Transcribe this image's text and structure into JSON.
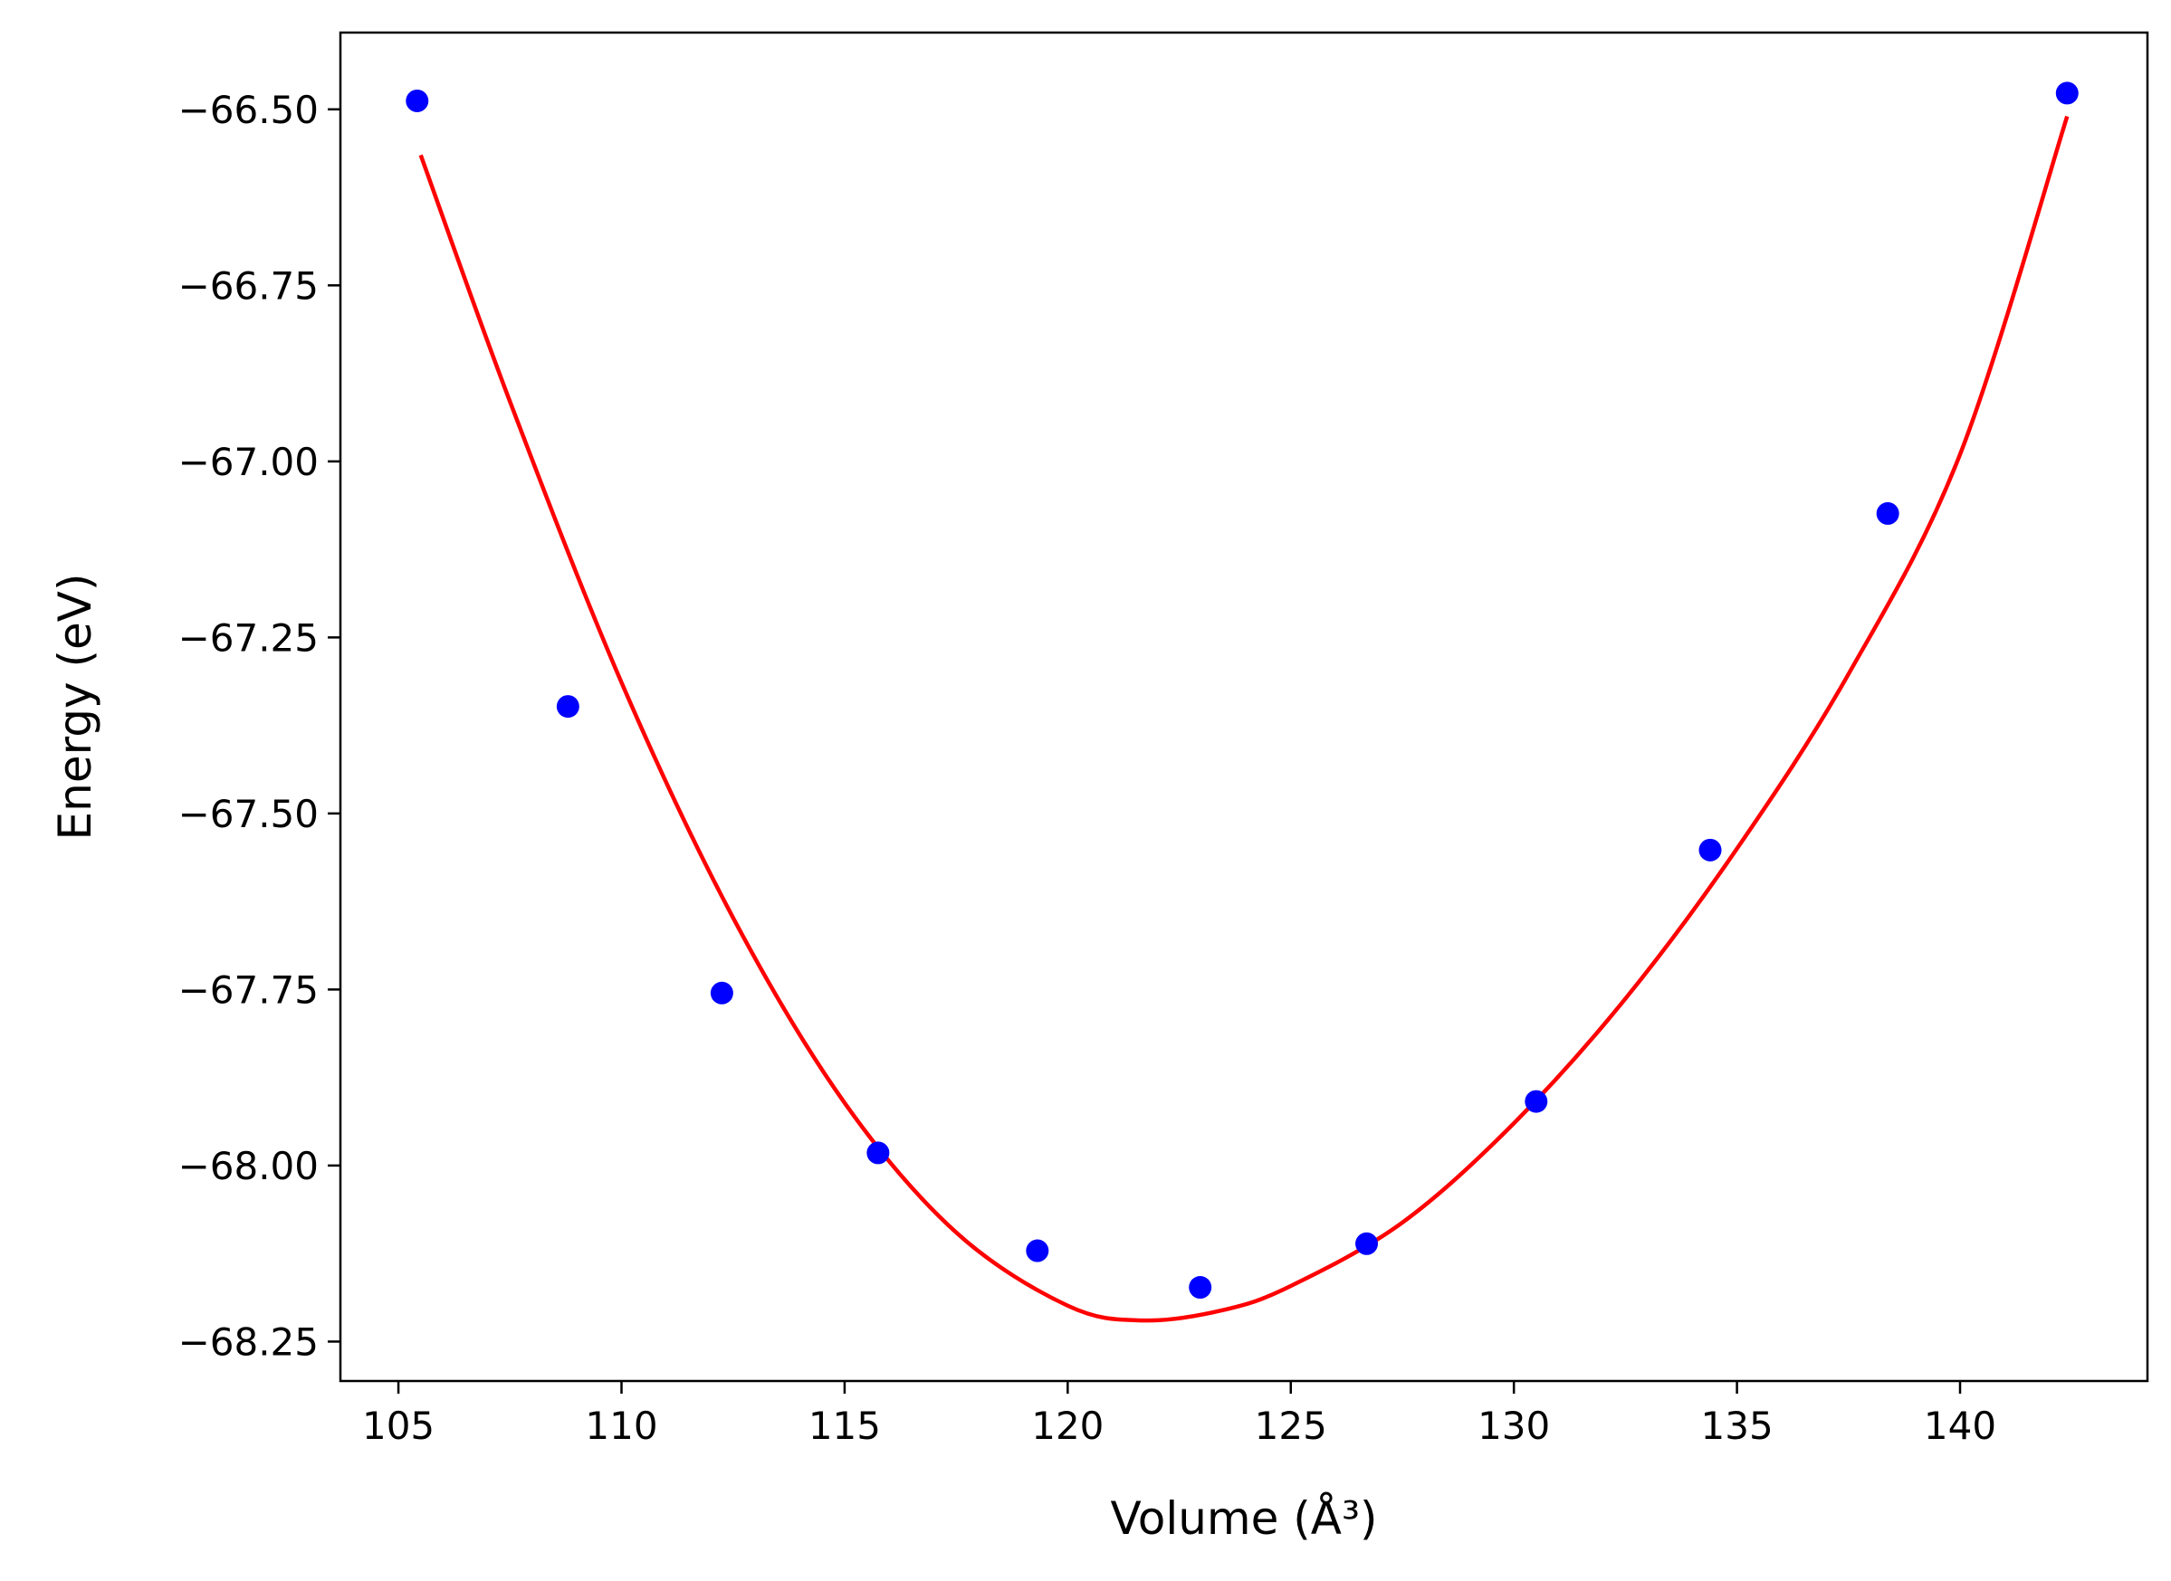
{
  "chart_data": {
    "type": "scatter",
    "xlabel": "Volume (Å³)",
    "ylabel": "Energy (eV)",
    "xlim": [
      103.7,
      144.2
    ],
    "ylim": [
      -68.306,
      -66.391
    ],
    "x_ticks": [
      105,
      110,
      115,
      120,
      125,
      130,
      135,
      140
    ],
    "y_ticks": [
      -66.5,
      -66.75,
      -67.0,
      -67.25,
      -67.5,
      -67.75,
      -68.0,
      -68.25
    ],
    "x_tick_labels": [
      "105",
      "110",
      "115",
      "120",
      "125",
      "130",
      "135",
      "140"
    ],
    "y_tick_labels": [
      "−66.50",
      "−66.75",
      "−67.00",
      "−67.25",
      "−67.50",
      "−67.75",
      "−68.00",
      "−68.25"
    ],
    "grid": false,
    "series": [
      {
        "type": "scatter",
        "color": "#0000ff",
        "x": [
          105.42,
          108.8,
          112.25,
          115.75,
          119.32,
          122.97,
          126.7,
          130.5,
          134.4,
          138.38,
          142.4
        ],
        "y": [
          -66.488,
          -67.348,
          -67.755,
          -67.982,
          -68.121,
          -68.173,
          -68.111,
          -67.909,
          -67.552,
          -67.074,
          -66.477
        ]
      },
      {
        "type": "line",
        "color": "#ff0000",
        "x": [
          105.5,
          107.5,
          110.0,
          112.5,
          115.0,
          117.5,
          120.0,
          121.7,
          123.5,
          125.0,
          127.5,
          130.0,
          132.5,
          135.0,
          137.5,
          140.0,
          142.4
        ],
        "y": [
          -66.565,
          -66.915,
          -67.314,
          -67.648,
          -67.911,
          -68.095,
          -68.199,
          -68.22,
          -68.205,
          -68.171,
          -68.081,
          -67.94,
          -67.763,
          -67.55,
          -67.302,
          -66.99,
          -66.51
        ]
      }
    ]
  }
}
